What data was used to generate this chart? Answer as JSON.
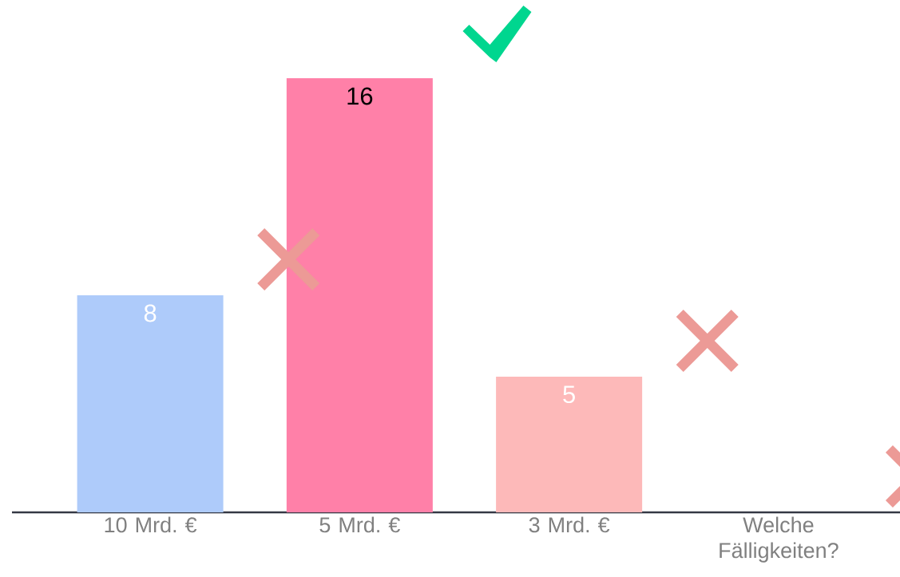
{
  "chart_data": {
    "type": "bar",
    "categories": [
      "10 Mrd. €",
      "5 Mrd. €",
      "3 Mrd. €",
      "Welche Fälligkeiten?"
    ],
    "values": [
      8,
      16,
      5,
      0
    ],
    "colors": [
      "#aecbfa",
      "#ff80a8",
      "#fdb9b9",
      "#fdb9b9"
    ],
    "value_labels": [
      "8",
      "16",
      "5",
      null
    ]
  }
}
